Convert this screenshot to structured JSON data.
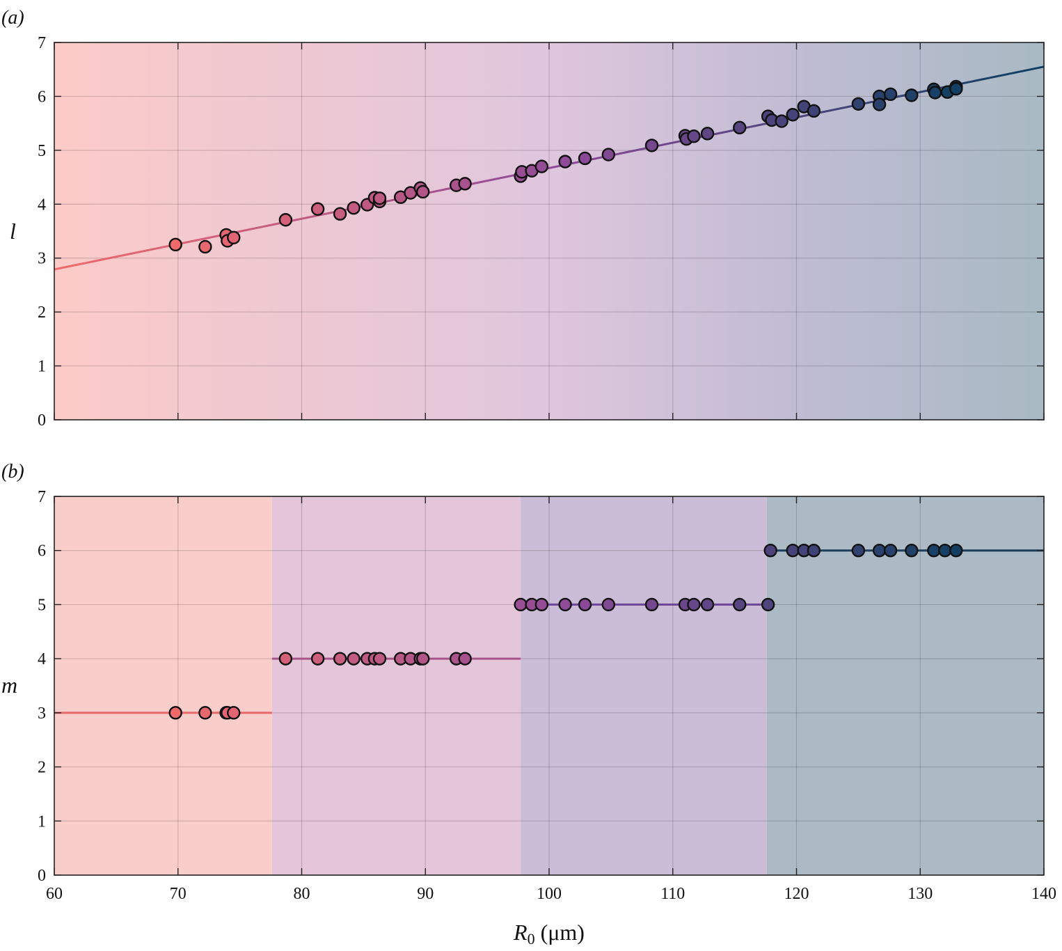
{
  "chart_data": [
    {
      "type": "scatter",
      "panel_label": "(a)",
      "ylabel": "l",
      "xlim": [
        60,
        140
      ],
      "ylim": [
        0,
        7
      ],
      "xticks": [
        60,
        70,
        80,
        90,
        100,
        110,
        120,
        130,
        140
      ],
      "yticks": [
        0,
        1,
        2,
        3,
        4,
        5,
        6,
        7
      ],
      "grid": true,
      "background": "horizontal gradient from #fccbc8 (x=60) to #a9bac4 (x=140)",
      "fit_line": {
        "x": [
          60,
          140
        ],
        "y": [
          2.79,
          6.55
        ]
      },
      "series": [
        {
          "x": [
            69.8,
            72.2,
            73.9,
            74.0,
            74.5,
            78.7,
            81.3,
            83.1,
            84.2,
            85.3,
            85.9,
            86.3,
            86.3,
            88.0,
            88.8,
            89.6,
            89.8,
            92.5,
            93.2,
            97.7,
            97.8,
            98.6,
            99.4,
            101.3,
            102.9,
            104.8,
            108.3,
            111.0,
            111.1,
            111.7,
            112.8,
            115.4,
            117.7,
            118.0,
            118.8,
            119.7,
            120.6,
            121.4,
            125.0,
            126.7,
            126.7,
            127.6,
            129.3,
            131.1,
            131.2,
            132.2,
            132.9,
            132.9
          ],
          "y": [
            3.25,
            3.21,
            3.43,
            3.32,
            3.38,
            3.71,
            3.91,
            3.82,
            3.93,
            3.99,
            4.12,
            4.05,
            4.11,
            4.13,
            4.21,
            4.3,
            4.23,
            4.35,
            4.38,
            4.52,
            4.6,
            4.62,
            4.7,
            4.79,
            4.85,
            4.92,
            5.09,
            5.27,
            5.21,
            5.26,
            5.31,
            5.42,
            5.63,
            5.56,
            5.54,
            5.66,
            5.81,
            5.73,
            5.86,
            6.0,
            5.85,
            6.04,
            6.02,
            6.13,
            6.07,
            6.08,
            6.18,
            6.14
          ]
        }
      ]
    },
    {
      "type": "scatter",
      "panel_label": "(b)",
      "ylabel": "m",
      "xlabel": "R0 (μm)",
      "xlim": [
        60,
        140
      ],
      "ylim": [
        0,
        7
      ],
      "xticks": [
        60,
        70,
        80,
        90,
        100,
        110,
        120,
        130,
        140
      ],
      "yticks": [
        0,
        1,
        2,
        3,
        4,
        5,
        6,
        7
      ],
      "grid": true,
      "bands": [
        {
          "x0": 60,
          "x1": 77.6,
          "m": 3,
          "fill": "#f9cdca",
          "line": "#e8676a"
        },
        {
          "x0": 77.6,
          "x1": 97.7,
          "m": 4,
          "fill": "#e4c5da",
          "line": "#a8558a"
        },
        {
          "x0": 97.7,
          "x1": 117.6,
          "m": 5,
          "fill": "#cbbdd7",
          "line": "#6c4596"
        },
        {
          "x0": 117.6,
          "x1": 140,
          "m": 6,
          "fill": "#abbac4",
          "line": "#1c3d5c"
        }
      ],
      "series": [
        {
          "x": [
            69.8,
            72.2,
            73.9,
            74.0,
            74.5,
            78.7,
            81.3,
            83.1,
            84.2,
            85.3,
            85.9,
            86.3,
            88.0,
            88.8,
            89.6,
            89.8,
            92.5,
            93.2,
            97.7,
            98.6,
            99.4,
            101.3,
            102.9,
            104.8,
            108.3,
            111.0,
            111.7,
            112.8,
            115.4,
            117.7,
            117.9,
            119.7,
            120.6,
            121.4,
            125.0,
            126.7,
            127.6,
            129.3,
            131.1,
            132.0,
            132.9
          ],
          "y": [
            3,
            3,
            3,
            3,
            3,
            4,
            4,
            4,
            4,
            4,
            4,
            4,
            4,
            4,
            4,
            4,
            4,
            4,
            5,
            5,
            5,
            5,
            5,
            5,
            5,
            5,
            5,
            5,
            5,
            5,
            6,
            6,
            6,
            6,
            6,
            6,
            6,
            6,
            6,
            6,
            6
          ]
        }
      ]
    }
  ],
  "colors": {
    "start": "#f26b6b",
    "mid": "#8e4a98",
    "end": "#0e3f61"
  }
}
